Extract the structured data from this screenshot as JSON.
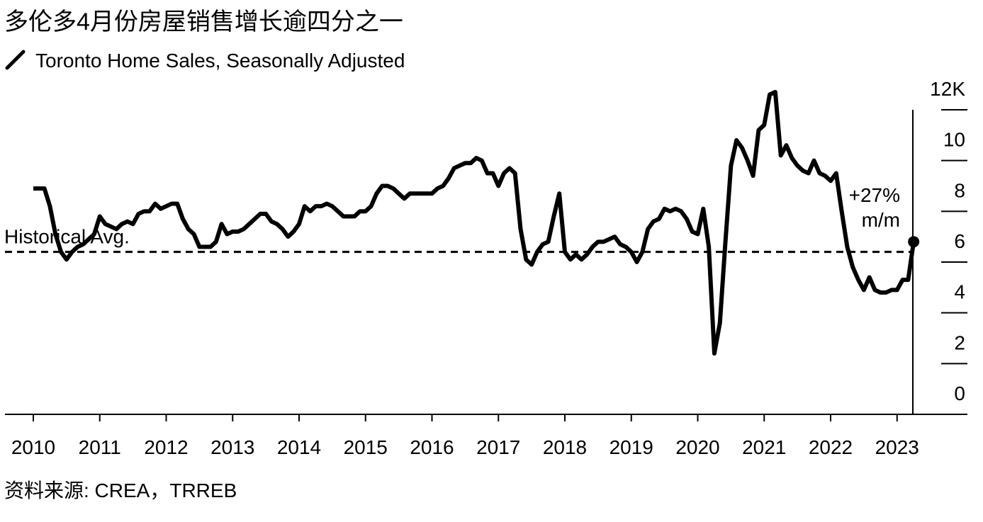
{
  "chart_data": {
    "type": "line",
    "title": "多伦多4月份房屋销售增长逾四分之一",
    "source": "资料来源: CREA，TRREB",
    "categories": [
      "2010",
      null,
      null,
      null,
      null,
      null,
      null,
      null,
      null,
      null,
      null,
      null,
      "2011",
      null,
      null,
      null,
      null,
      null,
      null,
      null,
      null,
      null,
      null,
      null,
      "2012",
      null,
      null,
      null,
      null,
      null,
      null,
      null,
      null,
      null,
      null,
      null,
      "2013",
      null,
      null,
      null,
      null,
      null,
      null,
      null,
      null,
      null,
      null,
      null,
      "2014",
      null,
      null,
      null,
      null,
      null,
      null,
      null,
      null,
      null,
      null,
      null,
      "2015",
      null,
      null,
      null,
      null,
      null,
      null,
      null,
      null,
      null,
      null,
      null,
      "2016",
      null,
      null,
      null,
      null,
      null,
      null,
      null,
      null,
      null,
      null,
      null,
      "2017",
      null,
      null,
      null,
      null,
      null,
      null,
      null,
      null,
      null,
      null,
      null,
      "2018",
      null,
      null,
      null,
      null,
      null,
      null,
      null,
      null,
      null,
      null,
      null,
      "2019",
      null,
      null,
      null,
      null,
      null,
      null,
      null,
      null,
      null,
      null,
      null,
      "2020",
      null,
      null,
      null,
      null,
      null,
      null,
      null,
      null,
      null,
      null,
      null,
      "2021",
      null,
      null,
      null,
      null,
      null,
      null,
      null,
      null,
      null,
      null,
      null,
      "2022",
      null,
      null,
      null,
      null,
      null,
      null,
      null,
      null,
      null,
      null,
      null,
      "2023",
      null,
      null,
      null
    ],
    "series": [
      {
        "name": "Toronto Home Sales, Seasonally Adjusted",
        "color": "#000000",
        "values": [
          8.9,
          8.9,
          8.9,
          8.2,
          7.1,
          6.4,
          6.1,
          6.4,
          6.6,
          6.7,
          6.9,
          7.1,
          7.8,
          7.5,
          7.4,
          7.3,
          7.5,
          7.6,
          7.5,
          7.9,
          8.0,
          8.0,
          8.3,
          8.1,
          8.2,
          8.3,
          8.3,
          7.7,
          7.3,
          7.1,
          6.6,
          6.6,
          6.6,
          6.8,
          7.5,
          7.1,
          7.2,
          7.2,
          7.3,
          7.5,
          7.7,
          7.9,
          7.9,
          7.6,
          7.5,
          7.3,
          7.0,
          7.2,
          7.5,
          8.2,
          8.0,
          8.2,
          8.2,
          8.3,
          8.2,
          8.0,
          7.8,
          7.8,
          7.8,
          8.0,
          8.0,
          8.2,
          8.7,
          9.0,
          9.0,
          8.9,
          8.7,
          8.5,
          8.7,
          8.7,
          8.7,
          8.7,
          8.7,
          8.9,
          9.0,
          9.3,
          9.7,
          9.8,
          9.9,
          9.9,
          10.1,
          10.0,
          9.5,
          9.5,
          9.0,
          9.5,
          9.7,
          9.5,
          7.3,
          6.1,
          5.9,
          6.4,
          6.7,
          6.8,
          7.8,
          8.7,
          6.4,
          6.1,
          6.3,
          6.1,
          6.3,
          6.6,
          6.8,
          6.8,
          6.9,
          7.0,
          6.7,
          6.6,
          6.4,
          6.0,
          6.4,
          7.3,
          7.6,
          7.7,
          8.1,
          8.0,
          8.1,
          8.0,
          7.7,
          7.2,
          7.1,
          8.1,
          6.6,
          2.4,
          3.6,
          6.8,
          9.8,
          10.8,
          10.5,
          10.0,
          9.4,
          11.2,
          11.4,
          12.6,
          12.7,
          10.2,
          10.6,
          10.1,
          9.8,
          9.6,
          9.5,
          10.0,
          9.5,
          9.4,
          9.2,
          9.5,
          8.0,
          6.6,
          5.8,
          5.3,
          4.9,
          5.4,
          4.9,
          4.8,
          4.8,
          4.9,
          4.9,
          5.3,
          5.3,
          6.8
        ]
      }
    ],
    "reference_line": {
      "label": "Historical Avg.",
      "value": 6.4
    },
    "annotation": [
      "+27%",
      "m/m"
    ],
    "ylim": [
      0,
      12
    ],
    "yticks": [
      0,
      2,
      4,
      6,
      8,
      10,
      {
        "value": 12,
        "label": "12K"
      }
    ]
  }
}
